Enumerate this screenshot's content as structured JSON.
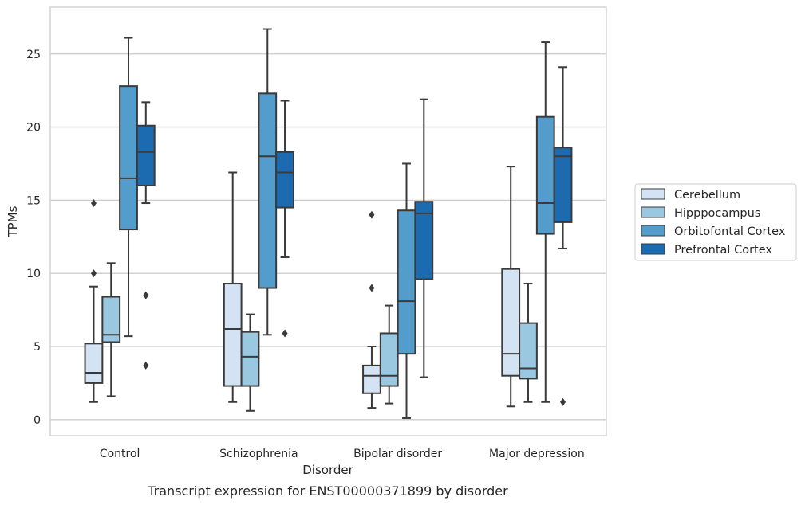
{
  "chart_data": {
    "type": "box",
    "caption": "Transcript expression for ENST00000371899 by disorder",
    "xlabel": "Disorder",
    "ylabel": "TPMs",
    "ylim": [
      -1.1,
      28.2
    ],
    "yticks": [
      0,
      5,
      10,
      15,
      20,
      25
    ],
    "grid": "horizontal",
    "legend_position": "right",
    "categories": [
      "Control",
      "Schizophrenia",
      "Bipolar disorder",
      "Major depression"
    ],
    "series": [
      {
        "name": "Cerebellum",
        "color": "#d3e3f3",
        "boxes": [
          {
            "whislo": 1.2,
            "q1": 2.5,
            "med": 3.2,
            "q3": 5.2,
            "whishi": 9.1,
            "fliers": [
              10.0,
              14.8
            ]
          },
          {
            "whislo": 1.2,
            "q1": 2.3,
            "med": 6.2,
            "q3": 9.3,
            "whishi": 16.9,
            "fliers": []
          },
          {
            "whislo": 0.8,
            "q1": 1.8,
            "med": 3.0,
            "q3": 3.7,
            "whishi": 5.0,
            "fliers": [
              9.0,
              14.0
            ]
          },
          {
            "whislo": 0.9,
            "q1": 3.0,
            "med": 4.5,
            "q3": 10.3,
            "whishi": 17.3,
            "fliers": []
          }
        ]
      },
      {
        "name": "Hipppocampus",
        "color": "#9ac8e0",
        "boxes": [
          {
            "whislo": 1.6,
            "q1": 5.3,
            "med": 5.8,
            "q3": 8.4,
            "whishi": 10.7,
            "fliers": []
          },
          {
            "whislo": 0.6,
            "q1": 2.3,
            "med": 4.3,
            "q3": 6.0,
            "whishi": 7.2,
            "fliers": []
          },
          {
            "whislo": 1.1,
            "q1": 2.3,
            "med": 3.0,
            "q3": 5.9,
            "whishi": 7.8,
            "fliers": []
          },
          {
            "whislo": 1.2,
            "q1": 2.8,
            "med": 3.5,
            "q3": 6.6,
            "whishi": 9.3,
            "fliers": []
          }
        ]
      },
      {
        "name": "Orbitofontal Cortex",
        "color": "#529dcc",
        "boxes": [
          {
            "whislo": 5.7,
            "q1": 13.0,
            "med": 16.5,
            "q3": 22.8,
            "whishi": 26.1,
            "fliers": []
          },
          {
            "whislo": 5.8,
            "q1": 9.0,
            "med": 18.0,
            "q3": 22.3,
            "whishi": 26.7,
            "fliers": []
          },
          {
            "whislo": 0.1,
            "q1": 4.5,
            "med": 8.1,
            "q3": 14.3,
            "whishi": 17.5,
            "fliers": []
          },
          {
            "whislo": 1.2,
            "q1": 12.7,
            "med": 14.8,
            "q3": 20.7,
            "whishi": 25.8,
            "fliers": []
          }
        ]
      },
      {
        "name": "Prefrontal Cortex",
        "color": "#1c6aaf",
        "boxes": [
          {
            "whislo": 14.8,
            "q1": 16.0,
            "med": 18.3,
            "q3": 20.1,
            "whishi": 21.7,
            "fliers": [
              3.7,
              8.5
            ]
          },
          {
            "whislo": 11.1,
            "q1": 14.5,
            "med": 16.9,
            "q3": 18.3,
            "whishi": 21.8,
            "fliers": [
              5.9
            ]
          },
          {
            "whislo": 2.9,
            "q1": 9.6,
            "med": 14.1,
            "q3": 14.9,
            "whishi": 21.9,
            "fliers": []
          },
          {
            "whislo": 11.7,
            "q1": 13.5,
            "med": 18.0,
            "q3": 18.6,
            "whishi": 24.1,
            "fliers": [
              1.2
            ]
          }
        ]
      }
    ]
  }
}
